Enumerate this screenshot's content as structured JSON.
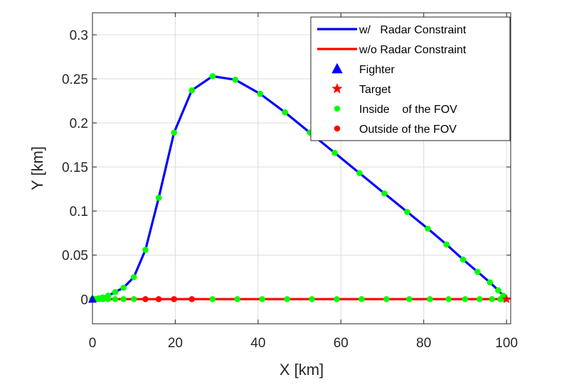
{
  "chart_data": {
    "type": "line",
    "xlabel": "X [km]",
    "ylabel": "Y [km]",
    "xlim": [
      0,
      101
    ],
    "ylim": [
      -0.028,
      0.325
    ],
    "xticks": [
      0,
      20,
      40,
      60,
      80,
      100
    ],
    "xtick_labels": [
      "0",
      "20",
      "40",
      "60",
      "80",
      "100"
    ],
    "yticks": [
      0,
      0.05,
      0.1,
      0.15,
      0.2,
      0.25,
      0.3
    ],
    "ytick_labels": [
      "0",
      "0.05",
      "0.1",
      "0.15",
      "0.2",
      "0.25",
      "0.3"
    ],
    "grid": true,
    "legend_position": "top-right",
    "legend": [
      {
        "label": "w/   Radar Constraint",
        "marker": "line",
        "color": "#0000ff"
      },
      {
        "label": "w/o Radar Constraint",
        "marker": "line",
        "color": "#ff0000"
      },
      {
        "label": "Fighter",
        "marker": "triangle",
        "color": "#0000ff"
      },
      {
        "label": "Target",
        "marker": "star",
        "color": "#ff0000"
      },
      {
        "label": "Inside    of the FOV",
        "marker": "dot",
        "color": "#00ff00"
      },
      {
        "label": "Outside of the FOV",
        "marker": "dot",
        "color": "#ff0000"
      }
    ],
    "series": [
      {
        "color": "#0000ff",
        "x": [
          0,
          0.7,
          1.5,
          2.5,
          3.8,
          5.5,
          7.5,
          10,
          12.8,
          16,
          19.7,
          24,
          29,
          34.5,
          40.5,
          46.5,
          52.5,
          58.5,
          64.5,
          70.5,
          76,
          81,
          85.5,
          89.5,
          93,
          96,
          98,
          99.2,
          100
        ],
        "y": [
          0,
          0,
          0.001,
          0.002,
          0.004,
          0.008,
          0.013,
          0.025,
          0.056,
          0.115,
          0.189,
          0.237,
          0.253,
          0.249,
          0.233,
          0.212,
          0.189,
          0.166,
          0.143,
          0.12,
          0.099,
          0.08,
          0.062,
          0.045,
          0.031,
          0.019,
          0.01,
          0.004,
          0
        ]
      },
      {
        "color": "#ff0000",
        "x": [
          0,
          100
        ],
        "y": [
          0,
          0
        ]
      }
    ],
    "fov_points_with_constraint": {
      "inside": {
        "x": [
          0,
          0.7,
          1.5,
          2.5,
          3.8,
          5.5,
          7.5,
          10,
          12.8,
          16,
          19.7,
          24,
          29,
          34.5,
          40.5,
          46.5,
          52.5,
          58.5,
          64.5,
          70.5,
          76,
          81,
          85.5,
          89.5,
          93,
          96,
          98,
          99.2
        ],
        "y": [
          0,
          0,
          0.001,
          0.002,
          0.004,
          0.008,
          0.013,
          0.025,
          0.056,
          0.115,
          0.189,
          0.237,
          0.253,
          0.249,
          0.233,
          0.212,
          0.189,
          0.166,
          0.143,
          0.12,
          0.099,
          0.08,
          0.062,
          0.045,
          0.031,
          0.019,
          0.01,
          0.004
        ]
      }
    },
    "fov_points_without_constraint": {
      "inside": {
        "x": [
          0,
          0.7,
          1.5,
          2.5,
          3.8,
          5.5,
          7.5,
          10,
          29,
          35,
          41,
          47,
          53,
          59,
          65,
          71,
          76.5,
          81.5,
          86,
          90,
          93.5,
          96.5,
          98.5,
          99.5
        ],
        "y": [
          0,
          0,
          0,
          0,
          0,
          0,
          0,
          0,
          0,
          0,
          0,
          0,
          0,
          0,
          0,
          0,
          0,
          0,
          0,
          0,
          0,
          0,
          0,
          0
        ]
      },
      "outside": {
        "x": [
          12.8,
          16,
          19.7,
          24
        ],
        "y": [
          0,
          0,
          0,
          0
        ]
      }
    },
    "fighter": {
      "x": 0,
      "y": 0
    },
    "target": {
      "x": 100,
      "y": 0
    }
  }
}
